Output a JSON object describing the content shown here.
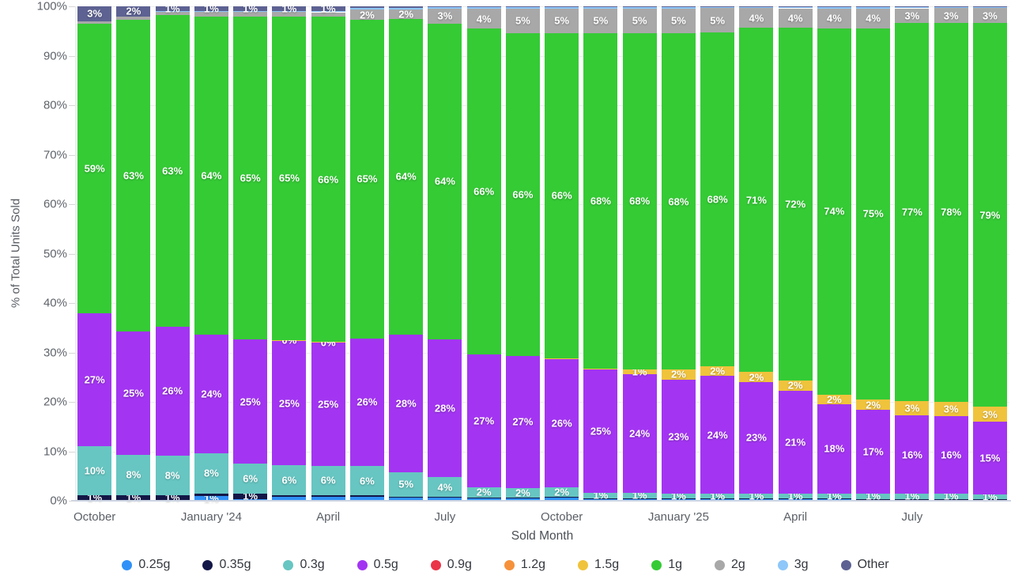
{
  "chart_data": {
    "type": "bar",
    "stacked": true,
    "percent_stacked": true,
    "title": "",
    "xlabel": "Sold Month",
    "ylabel": "% of Total Units Sold",
    "ylim": [
      0,
      100
    ],
    "grid": "horizontal",
    "legend_position": "bottom",
    "y_ticks": [
      "0%",
      "10%",
      "20%",
      "30%",
      "40%",
      "50%",
      "60%",
      "70%",
      "80%",
      "90%",
      "100%"
    ],
    "categories": [
      "Oct '23",
      "Nov '23",
      "Dec '23",
      "Jan '24",
      "Feb '24",
      "Mar '24",
      "Apr '24",
      "May '24",
      "Jun '24",
      "Jul '24",
      "Aug '24",
      "Sep '24",
      "Oct '24",
      "Nov '24",
      "Dec '24",
      "Jan '25",
      "Feb '25",
      "Mar '25",
      "Apr '25",
      "May '25",
      "Jun '25",
      "Jul '25",
      "Aug '25",
      "Sep '25"
    ],
    "x_tick_labels": [
      {
        "index": 0,
        "label": "October"
      },
      {
        "index": 3,
        "label": "January '24"
      },
      {
        "index": 6,
        "label": "April"
      },
      {
        "index": 9,
        "label": "July"
      },
      {
        "index": 12,
        "label": "October"
      },
      {
        "index": 15,
        "label": "January '25"
      },
      {
        "index": 18,
        "label": "April"
      },
      {
        "index": 21,
        "label": "July"
      }
    ],
    "label_threshold": 0.95,
    "label_overrides": [
      {
        "series": "1.5g",
        "bar": 5,
        "text": "0%"
      },
      {
        "series": "1.5g",
        "bar": 6,
        "text": "0%"
      }
    ],
    "series": [
      {
        "name": "0.25g",
        "color": "#2f91f7",
        "values": [
          0.2,
          0.2,
          0.2,
          1,
          0.4,
          0.8,
          0.8,
          0.8,
          0.6,
          0.6,
          0.5,
          0.5,
          0.6,
          0.4,
          0.4,
          0.3,
          0.3,
          0.3,
          0.4,
          0.4,
          0.3,
          0.3,
          0.3,
          0.2
        ]
      },
      {
        "name": "0.35g",
        "color": "#131747",
        "values": [
          1,
          1,
          1,
          0.5,
          1,
          0.3,
          0.3,
          0.3,
          0.2,
          0.2,
          0.2,
          0.15,
          0.15,
          0.15,
          0.15,
          0.2,
          0.15,
          0.2,
          0.1,
          0.1,
          0.1,
          0.1,
          0.1,
          0.1
        ]
      },
      {
        "name": "0.3g",
        "color": "#67c6c2",
        "values": [
          10,
          8,
          8,
          8,
          6,
          6,
          6,
          6,
          5,
          4,
          2,
          2,
          2,
          1,
          1,
          1,
          1,
          1,
          1,
          1,
          1,
          1,
          1,
          1
        ]
      },
      {
        "name": "0.5g",
        "color": "#a335f2",
        "values": [
          27,
          25,
          26,
          24,
          25,
          25,
          25,
          26,
          28,
          28,
          27,
          27,
          26,
          25,
          24,
          23,
          24,
          23,
          21,
          18,
          17,
          16,
          16,
          15
        ]
      },
      {
        "name": "0.9g",
        "color": "#ea3448",
        "values": [
          0,
          0,
          0,
          0,
          0,
          0,
          0,
          0,
          0,
          0,
          0,
          0,
          0,
          0,
          0,
          0,
          0,
          0,
          0,
          0,
          0,
          0,
          0,
          0
        ]
      },
      {
        "name": "1.2g",
        "color": "#f6913b",
        "values": [
          0,
          0,
          0,
          0,
          0,
          0,
          0,
          0,
          0,
          0,
          0,
          0,
          0,
          0,
          0,
          0,
          0,
          0,
          0,
          0,
          0,
          0,
          0,
          0
        ]
      },
      {
        "name": "1.5g",
        "color": "#f0c33c",
        "values": [
          0,
          0,
          0,
          0,
          0,
          0.1,
          0.1,
          0,
          0,
          0,
          0,
          0,
          0.2,
          0.3,
          1,
          2,
          2,
          2,
          2,
          2,
          2,
          3,
          3,
          3
        ]
      },
      {
        "name": "1g",
        "color": "#35cb35",
        "values": [
          59,
          63,
          63,
          64,
          65,
          65,
          66,
          65,
          64,
          64,
          66,
          66,
          66,
          68,
          68,
          68,
          68,
          71,
          72,
          74,
          75,
          77,
          78,
          79
        ]
      },
      {
        "name": "2g",
        "color": "#a8a8a8",
        "values": [
          0.6,
          0.7,
          0.7,
          0.9,
          0.9,
          0.9,
          0.9,
          2,
          2,
          3,
          4,
          5,
          5,
          5,
          5,
          5,
          5,
          4,
          4,
          4,
          4,
          3,
          3,
          3
        ]
      },
      {
        "name": "3g",
        "color": "#8ec7f9",
        "values": [
          0,
          0,
          0.1,
          0.1,
          0.1,
          0.1,
          0.2,
          0.3,
          0.3,
          0.3,
          0.3,
          0.3,
          0.3,
          0.3,
          0.3,
          0.3,
          0.3,
          0.3,
          0.3,
          0.3,
          0.3,
          0.3,
          0.3,
          0.3
        ]
      },
      {
        "name": "Other",
        "color": "#5d6292",
        "values": [
          3,
          2,
          1,
          1,
          1,
          1,
          1,
          0.4,
          0.3,
          0.2,
          0.2,
          0.15,
          0.1,
          0.1,
          0.1,
          0.1,
          0.1,
          0.1,
          0.1,
          0.1,
          0.1,
          0.1,
          0.1,
          0.1
        ]
      }
    ]
  }
}
